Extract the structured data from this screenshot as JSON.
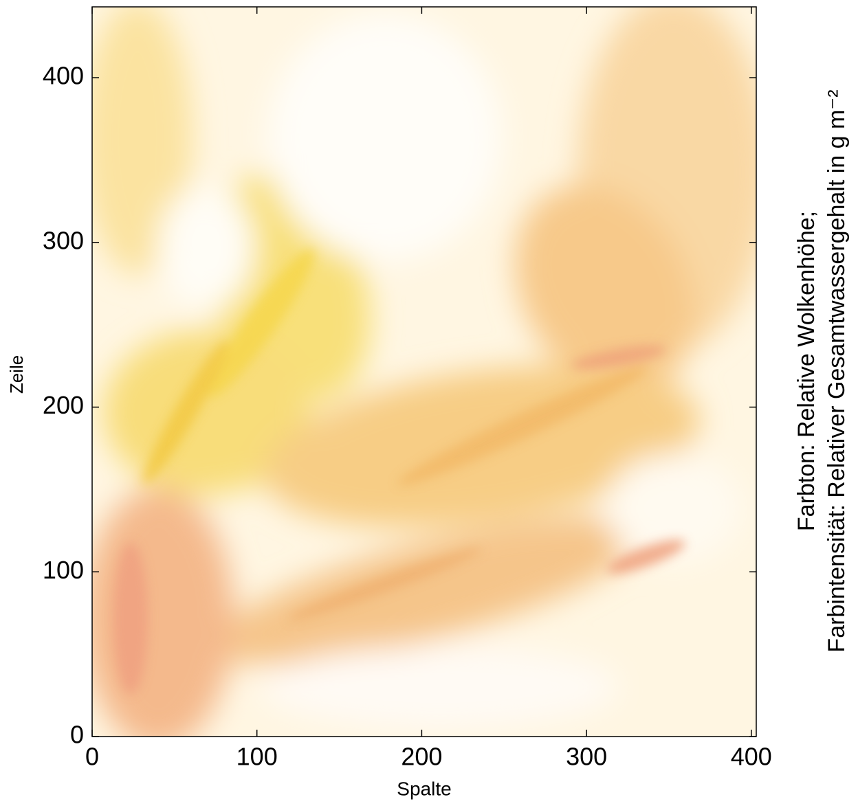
{
  "chart_data": {
    "type": "image",
    "xlabel": "Spalte",
    "ylabel": "Zeile",
    "colorbar_label": [
      "Farbton: Relative Wolkenhöhe;",
      "Farbintensität: Relativer Gesamtwassergehalt in g m⁻²"
    ],
    "xlim": [
      0,
      403
    ],
    "ylim": [
      0,
      443
    ],
    "xticks": [
      0,
      100,
      200,
      300,
      400
    ],
    "yticks": [
      0,
      100,
      200,
      300,
      400
    ]
  }
}
